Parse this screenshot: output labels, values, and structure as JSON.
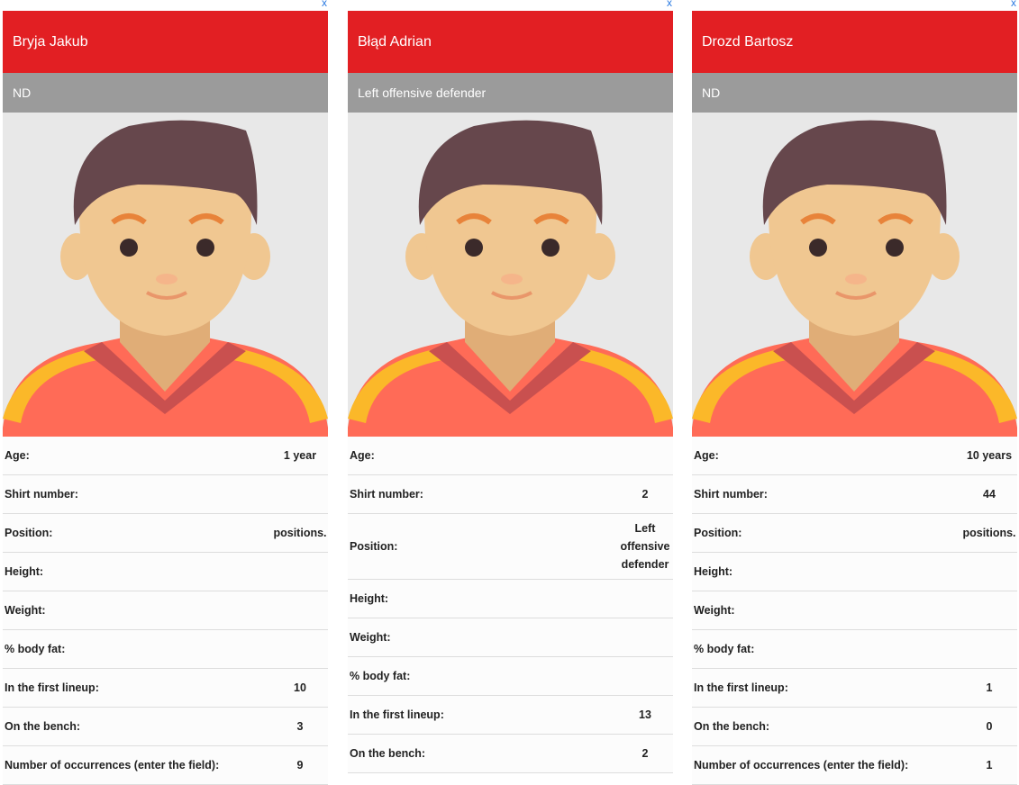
{
  "labels": {
    "age": "Age:",
    "shirt": "Shirt number:",
    "position": "Position:",
    "height": "Height:",
    "weight": "Weight:",
    "fat": "% body fat:",
    "lineup": "In the first lineup:",
    "bench": "On the bench:",
    "occ": "Number of occurrences (enter the field):"
  },
  "close_label": "x",
  "colors": {
    "header": "#e21f23",
    "subheader": "#9b9b9b",
    "link": "#2a7ae2"
  },
  "players": [
    {
      "name": "Bryja Jakub",
      "position_header": "ND",
      "age": "1 year",
      "shirt": "",
      "position": "positions.",
      "height": "",
      "weight": "",
      "fat": "",
      "lineup": "10",
      "bench": "3",
      "occ": "9"
    },
    {
      "name": "Błąd Adrian",
      "position_header": "Left offensive defender",
      "age": "",
      "shirt": "2",
      "position": "Left offensive defender",
      "height": "",
      "weight": "",
      "fat": "",
      "lineup": "13",
      "bench": "2",
      "occ": null
    },
    {
      "name": "Drozd Bartosz",
      "position_header": "ND",
      "age": "10 years",
      "shirt": "44",
      "position": "positions.",
      "height": "",
      "weight": "",
      "fat": "",
      "lineup": "1",
      "bench": "0",
      "occ": "1"
    }
  ]
}
